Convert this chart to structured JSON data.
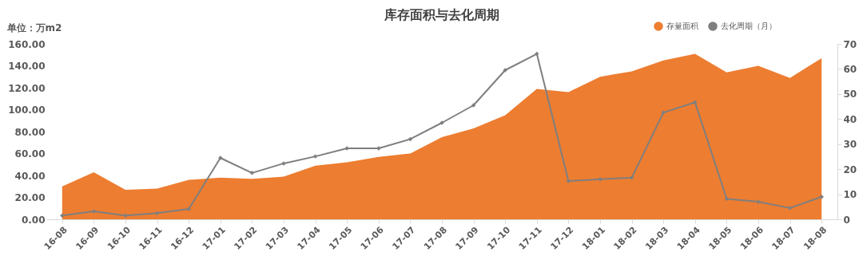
{
  "chart_data": {
    "type": "area",
    "title": "库存面积与去化周期",
    "ylabel": "单位：万m2",
    "categories": [
      "16-08",
      "16-09",
      "16-10",
      "16-11",
      "16-12",
      "17-01",
      "17-02",
      "17-03",
      "17-04",
      "17-05",
      "17-06",
      "17-07",
      "17-08",
      "17-09",
      "17-10",
      "17-11",
      "17-12",
      "18-01",
      "18-02",
      "18-03",
      "18-04",
      "18-05",
      "18-06",
      "18-07",
      "18-08"
    ],
    "series": [
      {
        "name": "存量面积",
        "color": "#ed7d31",
        "values": [
          30,
          43,
          27,
          28,
          36,
          38,
          37,
          39,
          49,
          52,
          57,
          60,
          75,
          83,
          95,
          119,
          116,
          130,
          135,
          145,
          151,
          134,
          140,
          129,
          147
        ]
      },
      {
        "name": "去化周期（月）",
        "type": "line",
        "axis": "y2",
        "marker": "diamond",
        "color": "#7f7f7f",
        "values": [
          1.5,
          3.2,
          1.5,
          2.5,
          4.1,
          24.5,
          18.5,
          22.3,
          25.1,
          28.3,
          28.3,
          32,
          38.5,
          45.5,
          59.5,
          66,
          15.3,
          16,
          16.6,
          42.6,
          46.7,
          8.2,
          7,
          4.5,
          9
        ]
      }
    ],
    "ylim": [
      0,
      160
    ],
    "yticks": [
      {
        "value": 0,
        "label": "0.00"
      },
      {
        "value": 20,
        "label": "20.00"
      },
      {
        "value": 40,
        "label": "40.00"
      },
      {
        "value": 60,
        "label": "60.00"
      },
      {
        "value": 80,
        "label": "80.00"
      },
      {
        "value": 100,
        "label": "100.00"
      },
      {
        "value": 120,
        "label": "120.00"
      },
      {
        "value": 140,
        "label": "140.00"
      },
      {
        "value": 160,
        "label": "160.00"
      }
    ],
    "y2lim": [
      0,
      70
    ],
    "y2ticks": [
      0,
      10,
      20,
      30,
      40,
      50,
      60,
      70
    ],
    "grid": false,
    "legend": "top right",
    "line_style": "solid"
  }
}
